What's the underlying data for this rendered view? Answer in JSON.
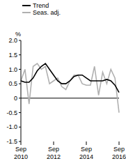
{
  "chart_data": {
    "type": "line",
    "ylabel": "%",
    "legend": "upper left",
    "grid": false,
    "categories": [
      "Sep 2010",
      null,
      null,
      null,
      null,
      null,
      null,
      null,
      "Sep 2012",
      null,
      null,
      null,
      null,
      null,
      null,
      null,
      "Sep 2014",
      null,
      null,
      null,
      null,
      null,
      null,
      null,
      "Sep 2016"
    ],
    "series": [
      {
        "name": "Trend",
        "color": "#000000",
        "values": [
          0.6,
          0.55,
          0.55,
          0.7,
          0.95,
          1.1,
          1.2,
          1.0,
          0.8,
          0.6,
          0.5,
          0.5,
          0.6,
          0.75,
          0.8,
          0.8,
          0.7,
          0.6,
          0.6,
          0.6,
          0.6,
          0.65,
          0.6,
          0.45,
          0.2
        ]
      },
      {
        "name": "Seas. adj.",
        "color": "#b0b0b0",
        "values": [
          0.6,
          1.0,
          -0.2,
          1.1,
          1.2,
          1.0,
          1.1,
          0.5,
          0.6,
          0.7,
          0.4,
          0.3,
          0.6,
          0.8,
          0.8,
          0.5,
          0.45,
          0.45,
          1.1,
          0.1,
          0.9,
          0.5,
          1.0,
          0.7,
          -0.5
        ]
      }
    ],
    "ylim": [
      -1.5,
      2
    ],
    "yticks": [
      -1.5,
      {
        "value": -1,
        "label": "-1.0"
      },
      -0.5,
      0,
      0.5,
      {
        "value": 1,
        "label": "1.0"
      },
      1.5,
      {
        "value": 2,
        "label": "2.0"
      }
    ]
  }
}
